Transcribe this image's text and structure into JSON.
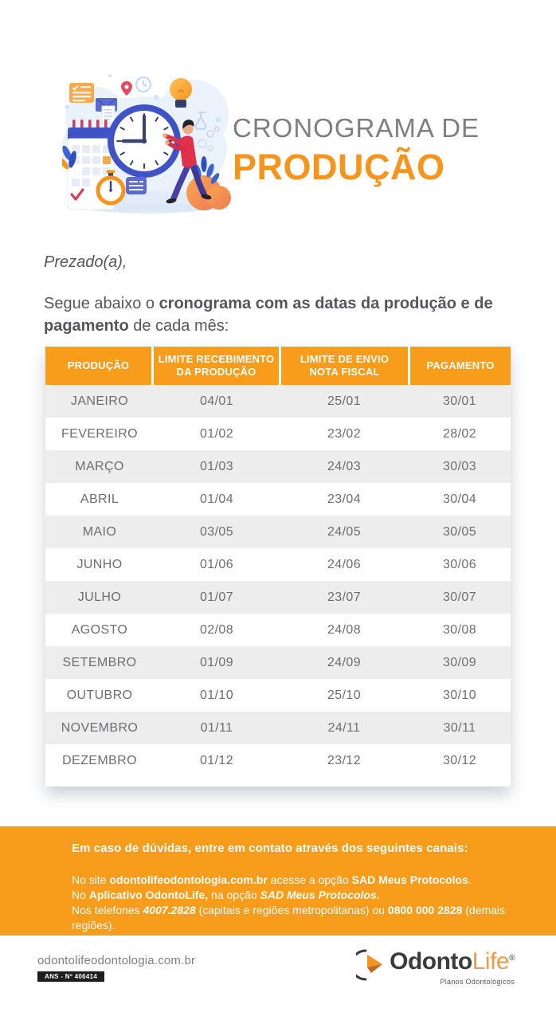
{
  "colors": {
    "orange": "#F89C1C",
    "title_orange": "#F7941E",
    "row_alt": "#EDEDEE",
    "cell_text": "#6D6E71",
    "muted_gray": "#7D7F83",
    "body_text": "#55565B"
  },
  "hero": {
    "title_line1": "CRONOGRAMA DE",
    "title_line2": "PRODUÇÃO",
    "illustration_alt": "clock-calendar-person-illustration"
  },
  "intro": {
    "salutation": "Prezado(a),",
    "paragraph": [
      {
        "t": "Segue abaixo o "
      },
      {
        "t": "cronograma com as datas da produção e de pagamento",
        "b": true
      },
      {
        "t": " de cada mês:"
      }
    ]
  },
  "table": {
    "headers": [
      "PRODUÇÃO",
      "LIMITE RECEBIMENTO\nDA PRODUÇÃO",
      "LIMITE DE ENVIO\nNOTA FISCAL",
      "PAGAMENTO"
    ],
    "rows": [
      [
        "JANEIRO",
        "04/01",
        "25/01",
        "30/01"
      ],
      [
        "FEVEREIRO",
        "01/02",
        "23/02",
        "28/02"
      ],
      [
        "MARÇO",
        "01/03",
        "24/03",
        "30/03"
      ],
      [
        "ABRIL",
        "01/04",
        "23/04",
        "30/04"
      ],
      [
        "MAIO",
        "03/05",
        "24/05",
        "30/05"
      ],
      [
        "JUNHO",
        "01/06",
        "24/06",
        "30/06"
      ],
      [
        "JULHO",
        "01/07",
        "23/07",
        "30/07"
      ],
      [
        "AGOSTO",
        "02/08",
        "24/08",
        "30/08"
      ],
      [
        "SETEMBRO",
        "01/09",
        "24/09",
        "30/09"
      ],
      [
        "OUTUBRO",
        "01/10",
        "25/10",
        "30/10"
      ],
      [
        "NOVEMBRO",
        "01/11",
        "24/11",
        "30/11"
      ],
      [
        "DEZEMBRO",
        "01/12",
        "23/12",
        "30/12"
      ]
    ]
  },
  "contact": {
    "heading": "Em caso de dúvidas, entre em contato através dos seguintes canais:",
    "lines": [
      [
        {
          "t": "No site "
        },
        {
          "t": "odontolifeodontologia.com.br",
          "b": true
        },
        {
          "t": " acesse a opção "
        },
        {
          "t": "SAD Meus Protocolos",
          "b": true
        },
        {
          "t": "."
        }
      ],
      [
        {
          "t": "No "
        },
        {
          "t": "Aplicativo OdontoLife,",
          "b": true
        },
        {
          "t": " na opção "
        },
        {
          "t": "SAD Meus Protocolos.",
          "b": true,
          "i": true
        }
      ],
      [
        {
          "t": "Nos telefones "
        },
        {
          "t": "4007.2828",
          "b": true,
          "i": true
        },
        {
          "t": " (capitais e regiões metropolitanas) ou "
        },
        {
          "t": "0800 000 2828",
          "b": true
        },
        {
          "t": " (demais regiões)."
        }
      ]
    ]
  },
  "footer": {
    "website": "odontolifeodontologia.com.br",
    "ans_label": "ANS - Nº 406414",
    "logo": {
      "part1": "Odonto",
      "part2": "Life",
      "reg": "®",
      "tagline": "Planos Odontológicos",
      "icon": "odontolife-logo-icon"
    }
  }
}
